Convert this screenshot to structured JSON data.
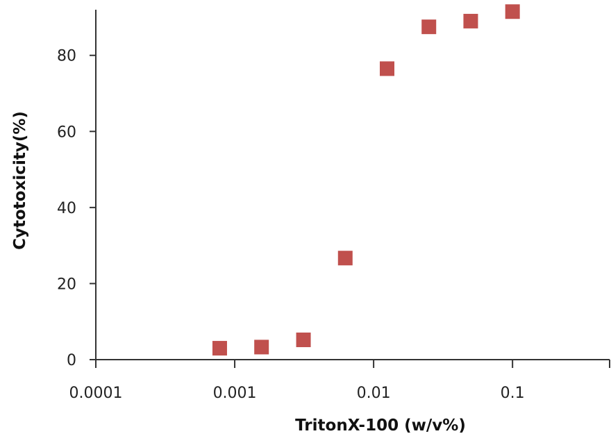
{
  "chart_data": {
    "type": "scatter",
    "xlabel": "TritonX-100 (w/v%)",
    "ylabel": "Cytotoxicity(%)",
    "x_scale": "log",
    "xlim": [
      0.0001,
      0.5
    ],
    "ylim": [
      0,
      92
    ],
    "x_ticks": [
      0.0001,
      0.001,
      0.01,
      0.1
    ],
    "x_tick_labels": [
      "0.0001",
      "0.001",
      "0.01",
      "0.1"
    ],
    "y_ticks": [
      0,
      20,
      40,
      60,
      80
    ],
    "y_tick_labels": [
      "0",
      "20",
      "40",
      "60",
      "80"
    ],
    "grid": false,
    "marker": "square",
    "marker_color": "#c0504d",
    "series": [
      {
        "x": [
          0.00078,
          0.00156,
          0.003125,
          0.00625,
          0.0125,
          0.025,
          0.05,
          0.1
        ],
        "y": [
          3.0,
          3.3,
          5.2,
          26.7,
          76.5,
          87.5,
          89.0,
          91.5
        ]
      }
    ]
  }
}
